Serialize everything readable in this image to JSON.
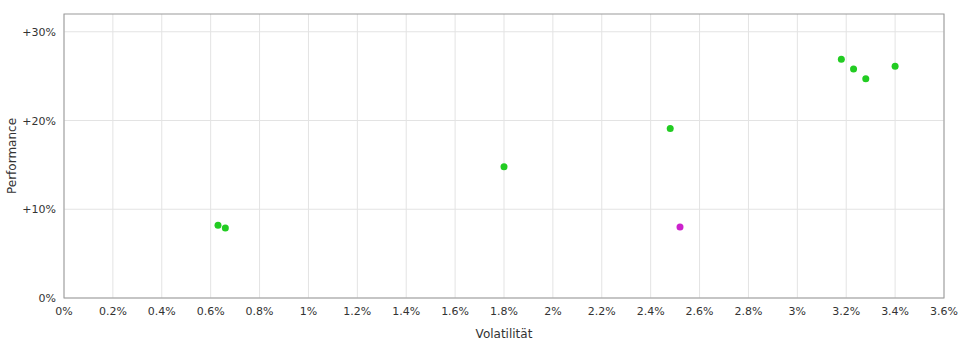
{
  "chart_data": {
    "type": "scatter",
    "xlabel": "Volatilität",
    "ylabel": "Performance",
    "xlim": [
      0.0,
      0.036
    ],
    "ylim": [
      0.0,
      0.32
    ],
    "xticks": [
      {
        "value": 0.0,
        "label": "0%"
      },
      {
        "value": 0.002,
        "label": "0.2%"
      },
      {
        "value": 0.004,
        "label": "0.4%"
      },
      {
        "value": 0.006,
        "label": "0.6%"
      },
      {
        "value": 0.008,
        "label": "0.8%"
      },
      {
        "value": 0.01,
        "label": "1%"
      },
      {
        "value": 0.012,
        "label": "1.2%"
      },
      {
        "value": 0.014,
        "label": "1.4%"
      },
      {
        "value": 0.016,
        "label": "1.6%"
      },
      {
        "value": 0.018,
        "label": "1.8%"
      },
      {
        "value": 0.02,
        "label": "2%"
      },
      {
        "value": 0.022,
        "label": "2.2%"
      },
      {
        "value": 0.024,
        "label": "2.4%"
      },
      {
        "value": 0.026,
        "label": "2.6%"
      },
      {
        "value": 0.028,
        "label": "2.8%"
      },
      {
        "value": 0.03,
        "label": "3%"
      },
      {
        "value": 0.032,
        "label": "3.2%"
      },
      {
        "value": 0.034,
        "label": "3.4%"
      },
      {
        "value": 0.036,
        "label": "3.6%"
      }
    ],
    "yticks": [
      {
        "value": 0.0,
        "label": "0%"
      },
      {
        "value": 0.1,
        "label": "+10%"
      },
      {
        "value": 0.2,
        "label": "+20%"
      },
      {
        "value": 0.3,
        "label": "+30%"
      }
    ],
    "grid": true,
    "series": [
      {
        "color": "#22cc22",
        "marker": "circle",
        "x": [
          0.0063,
          0.0066,
          0.018,
          0.0248,
          0.0318,
          0.0323,
          0.0328,
          0.034
        ],
        "values": [
          0.082,
          0.079,
          0.148,
          0.191,
          0.269,
          0.258,
          0.247,
          0.261
        ]
      },
      {
        "color": "#cc22cc",
        "marker": "circle",
        "x": [
          0.0252
        ],
        "values": [
          0.08
        ]
      }
    ]
  }
}
